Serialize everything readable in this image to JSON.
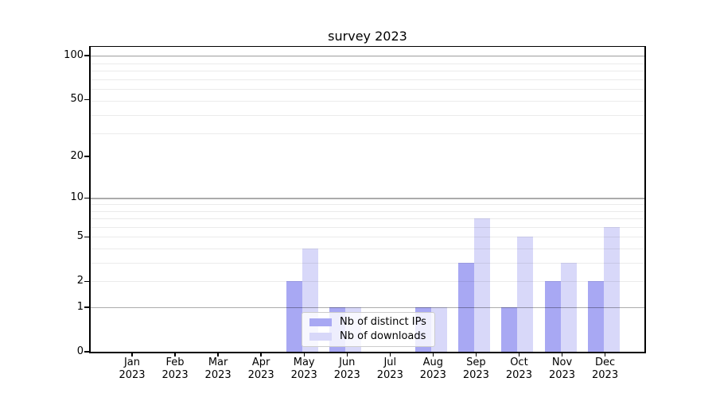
{
  "chart_data": {
    "type": "bar",
    "title": "survey 2023",
    "categories": [
      "Jan 2023",
      "Feb 2023",
      "Mar 2023",
      "Apr 2023",
      "May 2023",
      "Jun 2023",
      "Jul 2023",
      "Aug 2023",
      "Sep 2023",
      "Oct 2023",
      "Nov 2023",
      "Dec 2023"
    ],
    "series": [
      {
        "name": "Nb of distinct IPs",
        "color": "#a8a8f3",
        "values": [
          0,
          0,
          0,
          0,
          2,
          1,
          0,
          1,
          3,
          1,
          2,
          2
        ]
      },
      {
        "name": "Nb of downloads",
        "color": "#d8d8f9",
        "values": [
          0,
          0,
          0,
          0,
          4,
          1,
          0,
          1,
          7,
          5,
          3,
          6
        ]
      }
    ],
    "xlabel": "",
    "ylabel": "",
    "yticks": [
      0,
      1,
      2,
      5,
      10,
      20,
      50,
      100
    ],
    "yscale": "log10(1+value)",
    "ylim": [
      0,
      115
    ],
    "grid": {
      "horizontal": true,
      "vertical": false,
      "emphasized_at_values": [
        1,
        10,
        100
      ]
    },
    "legend": {
      "position": "inside-bottom-center",
      "entries": [
        "Nb of distinct IPs",
        "Nb of downloads"
      ]
    }
  },
  "colors": {
    "bar_distinct_ips": "#a8a8f3",
    "bar_downloads": "#d8d8f9",
    "grid_minor": "#ececec",
    "grid_major": "#aaaaaa",
    "spine": "#000000",
    "legend_border": "#cccccc",
    "background": "#ffffff"
  }
}
